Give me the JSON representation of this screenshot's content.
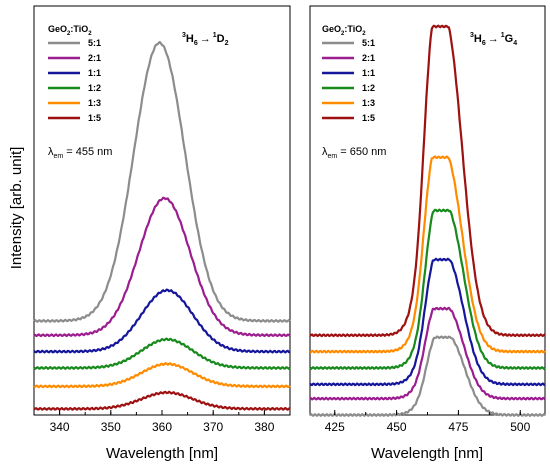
{
  "ylabel": "Intensity [arb. unit]",
  "chart_data": [
    {
      "type": "line",
      "xlabel": "Wavelength [nm]",
      "xlim": [
        335,
        385
      ],
      "xticks": [
        340,
        350,
        360,
        370,
        380
      ],
      "legend_title": "GeO2:TiO2",
      "legend_title_main": "GeO",
      "legend_title_sub1": "2",
      "legend_title_mid": ":TiO",
      "legend_title_sub2": "2",
      "annotation_lambda": "λ",
      "annotation_lambda_sub": "em",
      "annotation_lambda_value": "= 455 nm",
      "transition_label": "3H6 → 1D2",
      "transition": {
        "sup1": "3",
        "base1": "H",
        "sub1": "6",
        "arrow": "→",
        "sup2": "1",
        "base2": "D",
        "sub2": "2"
      },
      "series": [
        {
          "name": "5:1",
          "color": "#8c8c8c",
          "baseline": 0.23,
          "peak": 0.91,
          "center": 359.5,
          "width": 5.0
        },
        {
          "name": "2:1",
          "color": "#9b1d8f",
          "baseline": 0.195,
          "peak": 0.53,
          "center": 360.5,
          "width": 5.0
        },
        {
          "name": "1:1",
          "color": "#15169a",
          "baseline": 0.155,
          "peak": 0.305,
          "center": 361.0,
          "width": 5.0
        },
        {
          "name": "1:2",
          "color": "#188a1c",
          "baseline": 0.115,
          "peak": 0.185,
          "center": 361.0,
          "width": 5.0
        },
        {
          "name": "1:3",
          "color": "#ff8c00",
          "baseline": 0.07,
          "peak": 0.125,
          "center": 361.0,
          "width": 5.0
        },
        {
          "name": "1:5",
          "color": "#9e1111",
          "baseline": 0.015,
          "peak": 0.055,
          "center": 361.0,
          "width": 5.0
        }
      ]
    },
    {
      "type": "line",
      "xlabel": "Wavelength [nm]",
      "xlim": [
        415,
        510
      ],
      "xticks": [
        425,
        450,
        475,
        500
      ],
      "legend_title": "GeO2:TiO2",
      "legend_title_main": "GeO",
      "legend_title_sub1": "2",
      "legend_title_mid": ":TiO",
      "legend_title_sub2": "2",
      "annotation_lambda": "λ",
      "annotation_lambda_sub": "em",
      "annotation_lambda_value": "= 650 nm",
      "transition_label": "3H6 → 1G4",
      "transition": {
        "sup1": "3",
        "base1": "H",
        "sub1": "6",
        "arrow": "→",
        "sup2": "1",
        "base2": "G",
        "sub2": "4"
      },
      "series": [
        {
          "name": "5:1",
          "color": "#8c8c8c",
          "baseline": 0.0,
          "peak": 0.19,
          "center": 471.0,
          "width": 6.5
        },
        {
          "name": "2:1",
          "color": "#9b1d8f",
          "baseline": 0.04,
          "peak": 0.26,
          "center": 470.5,
          "width": 6.5
        },
        {
          "name": "1:1",
          "color": "#15169a",
          "baseline": 0.075,
          "peak": 0.38,
          "center": 470.5,
          "width": 6.5
        },
        {
          "name": "1:2",
          "color": "#188a1c",
          "baseline": 0.115,
          "peak": 0.5,
          "center": 470.5,
          "width": 6.5
        },
        {
          "name": "1:3",
          "color": "#ff8c00",
          "baseline": 0.155,
          "peak": 0.63,
          "center": 470.0,
          "width": 6.5
        },
        {
          "name": "1:5",
          "color": "#9e1111",
          "baseline": 0.195,
          "peak": 0.95,
          "center": 470.0,
          "width": 6.5
        }
      ]
    }
  ]
}
